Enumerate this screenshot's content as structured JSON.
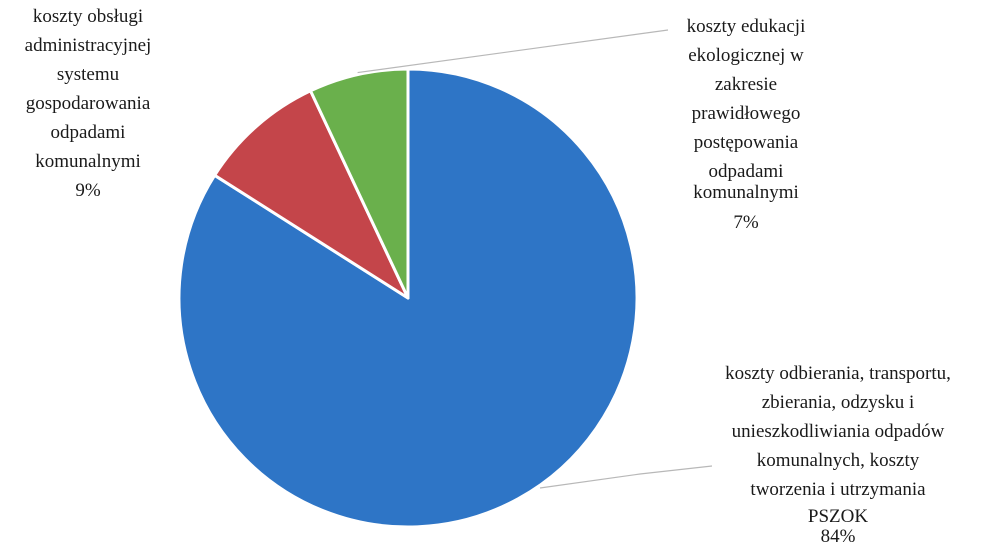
{
  "chart_data": {
    "type": "pie",
    "title": "",
    "slices": [
      {
        "label_lines": [
          "koszty odbierania, transportu,",
          "zbierania, odzysku i",
          "unieszkodliwiania odpadów",
          "komunalnych, koszty",
          "tworzenia i utrzymania",
          "PSZOK"
        ],
        "percent_label": "84%",
        "value": 84,
        "color": "#2e75c6"
      },
      {
        "label_lines": [
          "koszty obsługi",
          "administracyjnej",
          "systemu",
          "gospodarowania",
          "odpadami",
          "komunalnymi"
        ],
        "percent_label": "9%",
        "value": 9,
        "color": "#c4454a"
      },
      {
        "label_lines": [
          "koszty edukacji",
          "ekologicznej w",
          "zakresie",
          "prawidłowego",
          "postępowania",
          "odpadami",
          "komunalnymi"
        ],
        "percent_label": "7%",
        "value": 7,
        "color": "#6ab04c"
      }
    ],
    "start_angle_deg": 0,
    "direction": "clockwise",
    "legend": "none",
    "slice_border_color": "#ffffff"
  }
}
